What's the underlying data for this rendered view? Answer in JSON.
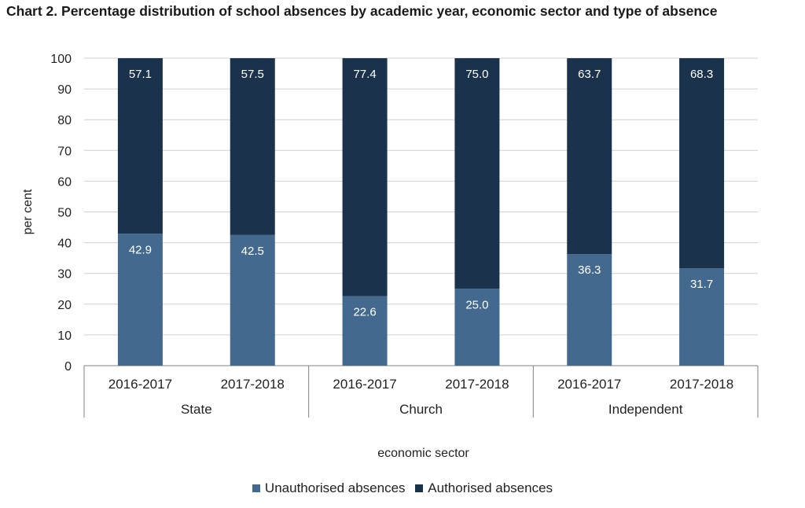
{
  "chart_data": {
    "type": "bar",
    "stacked": true,
    "title": "Chart 2. Percentage distribution of school absences by academic year, economic sector and type of absence",
    "xlabel": "economic sector",
    "ylabel": "per cent",
    "ylim": [
      0,
      100
    ],
    "yticks": [
      "0",
      "10",
      "20",
      "30",
      "40",
      "50",
      "60",
      "70",
      "80",
      "90",
      "100"
    ],
    "grid": true,
    "legend_position": "bottom",
    "groups": [
      "State",
      "Church",
      "Independent"
    ],
    "categories": [
      "2016-2017",
      "2017-2018",
      "2016-2017",
      "2017-2018",
      "2016-2017",
      "2017-2018"
    ],
    "series": [
      {
        "name": "Unauthorised absences",
        "color": "#436a8e",
        "values": [
          42.9,
          42.5,
          22.6,
          25.0,
          36.3,
          31.7
        ],
        "labels": [
          "42.9",
          "42.5",
          "22.6",
          "25.0",
          "36.3",
          "31.7"
        ]
      },
      {
        "name": "Authorised absences",
        "color": "#1b324d",
        "values": [
          57.1,
          57.5,
          77.4,
          75.0,
          63.7,
          68.3
        ],
        "labels": [
          "57.1",
          "57.5",
          "77.4",
          "75.0",
          "63.7",
          "68.3"
        ]
      }
    ]
  }
}
